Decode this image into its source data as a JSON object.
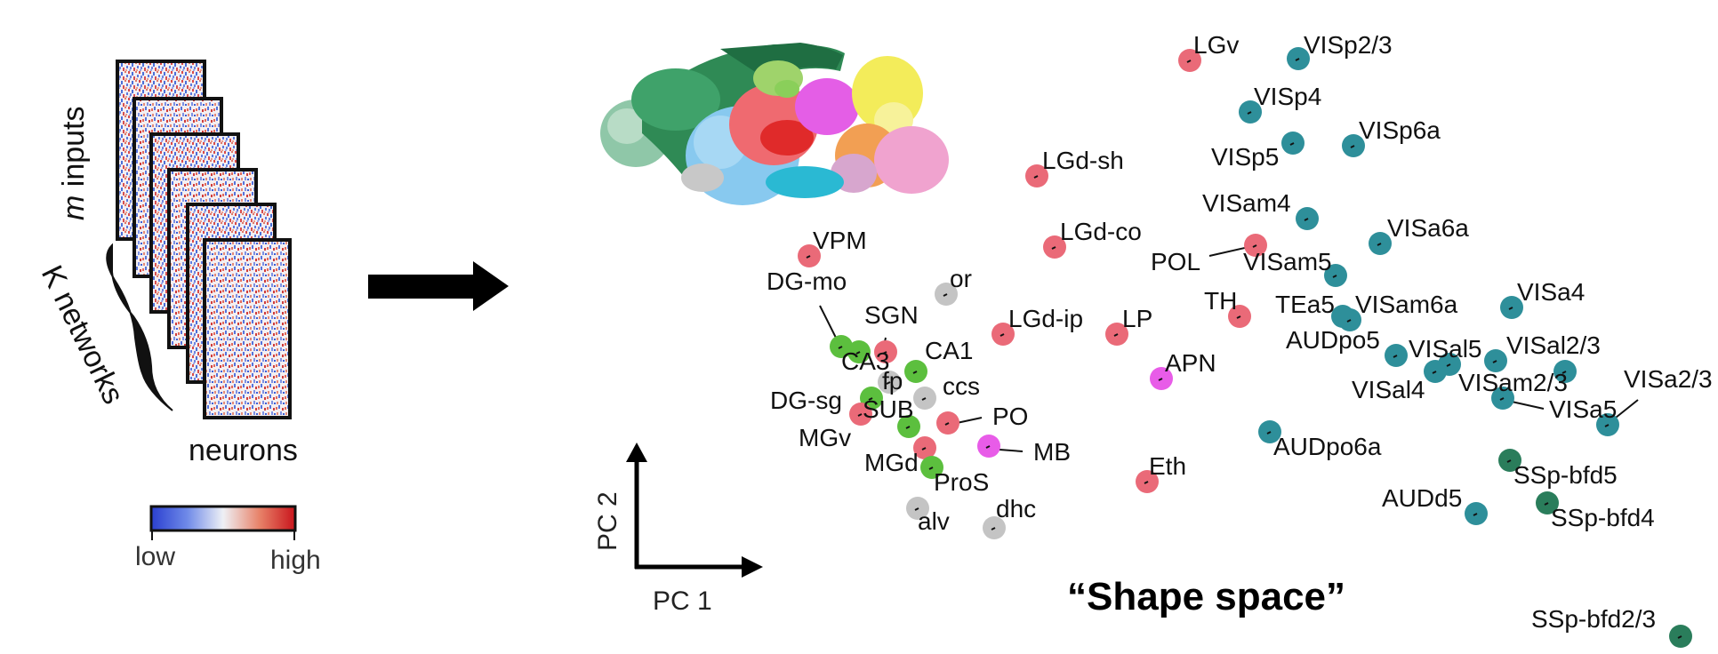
{
  "left_panel": {
    "axis_m_italic": "m",
    "axis_m_rest": " inputs",
    "axis_k": "K networks",
    "axis_neurons": "neurons",
    "colorbar_low": "low",
    "colorbar_high": "high",
    "colorbar_colors": [
      "#2a3fd0",
      "#6f8ae8",
      "#eef0f5",
      "#e8836a",
      "#c9141b"
    ]
  },
  "shape_space": {
    "title": "“Shape space”",
    "axis_pc1": "PC 1",
    "axis_pc2": "PC 2"
  },
  "group_colors": {
    "thalamus": "#ea6a78",
    "cortex": "#2e8f9a",
    "hippocampus": "#5cbf3e",
    "fiber": "#c4c4c4",
    "midbrain": "#e85ce8",
    "barrel": "#2a7d5b"
  },
  "points": [
    {
      "label": "LGv",
      "group": "thalamus"
    },
    {
      "label": "VISp2/3",
      "group": "cortex"
    },
    {
      "label": "VISp4",
      "group": "cortex"
    },
    {
      "label": "VISp5",
      "group": "cortex"
    },
    {
      "label": "VISp6a",
      "group": "cortex"
    },
    {
      "label": "LGd-sh",
      "group": "thalamus"
    },
    {
      "label": "VISam4",
      "group": "cortex"
    },
    {
      "label": "VISa6a",
      "group": "cortex"
    },
    {
      "label": "LGd-co",
      "group": "thalamus"
    },
    {
      "label": "POL",
      "group": "thalamus"
    },
    {
      "label": "VISam5",
      "group": "cortex"
    },
    {
      "label": "VPM",
      "group": "thalamus"
    },
    {
      "label": "DG-mo",
      "group": "hippocampus"
    },
    {
      "label": "or",
      "group": "fiber"
    },
    {
      "label": "TH",
      "group": "thalamus"
    },
    {
      "label": "TEa5",
      "group": "cortex"
    },
    {
      "label": "VISam6a",
      "group": "cortex"
    },
    {
      "label": "VISa4",
      "group": "cortex"
    },
    {
      "label": "SGN",
      "group": "thalamus"
    },
    {
      "label": "LGd-ip",
      "group": "thalamus"
    },
    {
      "label": "LP",
      "group": "thalamus"
    },
    {
      "label": "AUDpo5",
      "group": "cortex"
    },
    {
      "label": "VISal5",
      "group": "cortex"
    },
    {
      "label": "VISal2/3",
      "group": "cortex"
    },
    {
      "label": "CA3",
      "group": "hippocampus"
    },
    {
      "label": "CA1",
      "group": "hippocampus"
    },
    {
      "label": "fp",
      "group": "fiber"
    },
    {
      "label": "ccs",
      "group": "fiber"
    },
    {
      "label": "APN",
      "group": "midbrain"
    },
    {
      "label": "VISal4",
      "group": "cortex"
    },
    {
      "label": "VISam2/3",
      "group": "cortex"
    },
    {
      "label": "VISa2/3",
      "group": "cortex"
    },
    {
      "label": "DG-sg",
      "group": "hippocampus"
    },
    {
      "label": "SUB",
      "group": "thalamus"
    },
    {
      "label": "PO",
      "group": "thalamus"
    },
    {
      "label": "VISa5",
      "group": "cortex"
    },
    {
      "label": "MGv",
      "group": "hippocampus"
    },
    {
      "label": "MB",
      "group": "midbrain"
    },
    {
      "label": "AUDpo6a",
      "group": "cortex"
    },
    {
      "label": "MGd",
      "group": "thalamus"
    },
    {
      "label": "ProS",
      "group": "hippocampus"
    },
    {
      "label": "Eth",
      "group": "thalamus"
    },
    {
      "label": "SSp-bfd5",
      "group": "barrel"
    },
    {
      "label": "AUDd5",
      "group": "cortex"
    },
    {
      "label": "SSp-bfd4",
      "group": "barrel"
    },
    {
      "label": "alv",
      "group": "fiber"
    },
    {
      "label": "dhc",
      "group": "fiber"
    },
    {
      "label": "SSp-bfd2/3",
      "group": "barrel"
    }
  ]
}
